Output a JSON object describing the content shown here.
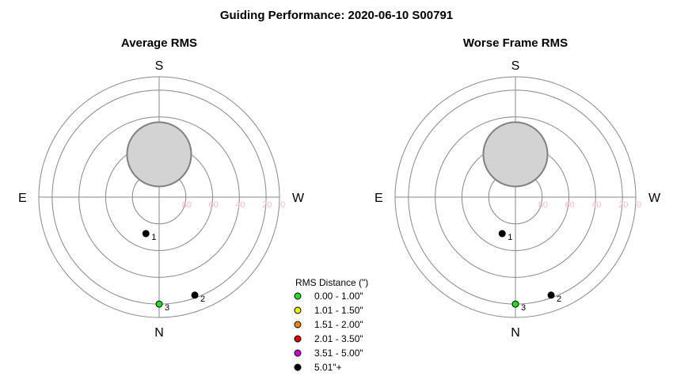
{
  "title": "Guiding Performance: 2020-06-10 S00791",
  "chart_data": [
    {
      "type": "scatter",
      "subtitle": "Average RMS",
      "directions": {
        "top": "S",
        "bottom": "N",
        "left": "E",
        "right": "W"
      },
      "r_axis_ticks": [
        "80",
        "60",
        "40",
        "20",
        "0"
      ],
      "r_ticks_values": [
        80,
        60,
        40,
        20,
        0
      ],
      "rings_altitude": [
        90,
        70,
        50,
        30,
        10
      ],
      "horizon_altitude": 0,
      "obscured_region": {
        "center_azimuth": 0,
        "center_altitude": 58,
        "radius_deg": 24
      },
      "points": [
        {
          "label": "1",
          "azimuth": 160,
          "altitude": 61,
          "color_class": "5.01\"+"
        },
        {
          "label": "2",
          "azimuth": 200,
          "altitude": 12,
          "color_class": "5.01\"+"
        },
        {
          "label": "3",
          "azimuth": 180,
          "altitude": 10,
          "color_class": "0.00 - 1.00\""
        }
      ]
    },
    {
      "type": "scatter",
      "subtitle": "Worse Frame RMS",
      "directions": {
        "top": "S",
        "bottom": "N",
        "left": "E",
        "right": "W"
      },
      "r_axis_ticks": [
        "80",
        "60",
        "40",
        "20",
        "0"
      ],
      "r_ticks_values": [
        80,
        60,
        40,
        20,
        0
      ],
      "rings_altitude": [
        90,
        70,
        50,
        30,
        10
      ],
      "horizon_altitude": 0,
      "obscured_region": {
        "center_azimuth": 0,
        "center_altitude": 58,
        "radius_deg": 24
      },
      "points": [
        {
          "label": "1",
          "azimuth": 160,
          "altitude": 61,
          "color_class": "5.01\"+"
        },
        {
          "label": "2",
          "azimuth": 200,
          "altitude": 12,
          "color_class": "5.01\"+"
        },
        {
          "label": "3",
          "azimuth": 180,
          "altitude": 10,
          "color_class": "0.00 - 1.00\""
        }
      ]
    }
  ],
  "legend": {
    "title": "RMS Distance (\")",
    "entries": [
      {
        "label": "0.00 - 1.00\"",
        "color": "#22dd22"
      },
      {
        "label": "1.01 - 1.50\"",
        "color": "#eeee00"
      },
      {
        "label": "1.51 - 2.00\"",
        "color": "#ee8800"
      },
      {
        "label": "2.01 - 3.50\"",
        "color": "#dd0000"
      },
      {
        "label": "3.51 - 5.00\"",
        "color": "#cc00cc"
      },
      {
        "label": "5.01\"+",
        "color": "#000000"
      }
    ]
  }
}
